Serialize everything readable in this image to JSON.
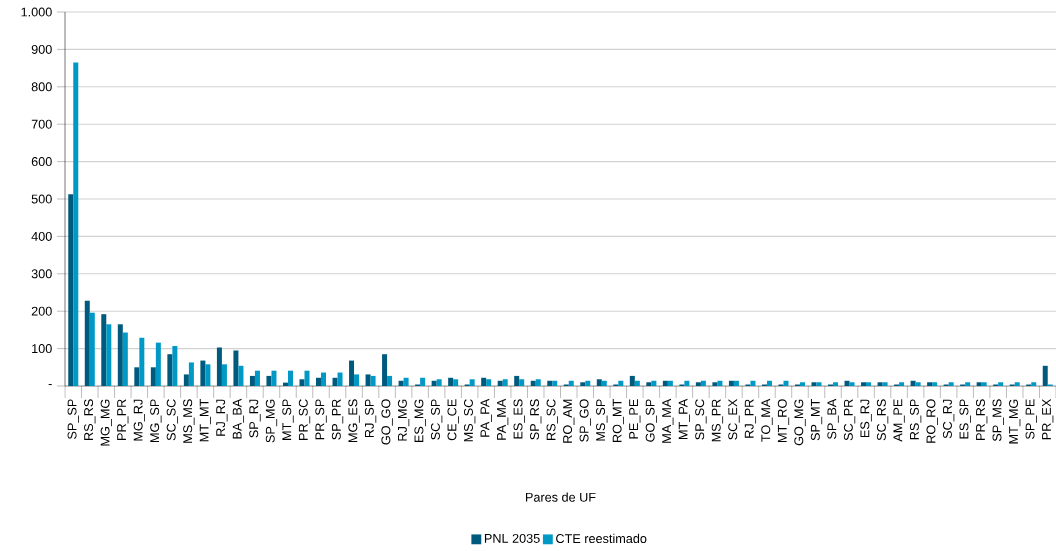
{
  "chart_data": {
    "type": "bar",
    "xlabel": "Pares de UF",
    "categories": [
      "SP_SP",
      "RS_RS",
      "MG_MG",
      "PR_PR",
      "MG_RJ",
      "MG_SP",
      "SC_SC",
      "MS_MS",
      "MT_MT",
      "RJ_RJ",
      "BA_BA",
      "SP_RJ",
      "SP_MG",
      "MT_SP",
      "PR_SC",
      "PR_SP",
      "SP_PR",
      "MG_ES",
      "RJ_SP",
      "GO_GO",
      "RJ_MG",
      "ES_MG",
      "SC_SP",
      "CE_CE",
      "MS_SC",
      "PA_PA",
      "PA_MA",
      "ES_ES",
      "SP_RS",
      "RS_SC",
      "RO_AM",
      "SP_GO",
      "MS_SP",
      "RO_MT",
      "PE_PE",
      "GO_SP",
      "MA_MA",
      "MT_PA",
      "SP_SC",
      "MS_PR",
      "SC_EX",
      "RJ_PR",
      "TO_MA",
      "MT_RO",
      "GO_MG",
      "SP_MT",
      "SP_BA",
      "SC_PR",
      "ES_RJ",
      "SC_RS",
      "AM_PE",
      "RS_SP",
      "RO_RO",
      "SC_RJ",
      "ES_SP",
      "PR_RS",
      "SP_MS",
      "MT_MG",
      "SP_PE",
      "PR_EX"
    ],
    "series": [
      {
        "name": "PNL 2035",
        "color": "#005a7e",
        "values": [
          513,
          228,
          192,
          165,
          50,
          50,
          85,
          31,
          68,
          103,
          95,
          27,
          27,
          9,
          18,
          22,
          22,
          68,
          31,
          85,
          14,
          4,
          14,
          22,
          4,
          22,
          14,
          27,
          14,
          14,
          4,
          10,
          18,
          4,
          27,
          10,
          14,
          4,
          10,
          10,
          14,
          4,
          4,
          4,
          4,
          10,
          4,
          14,
          10,
          10,
          4,
          14,
          10,
          4,
          4,
          10,
          4,
          4,
          4,
          54
        ]
      },
      {
        "name": "CTE reestimado",
        "color": "#0099c6",
        "values": [
          865,
          196,
          165,
          143,
          129,
          116,
          107,
          63,
          58,
          58,
          54,
          41,
          41,
          41,
          41,
          36,
          36,
          31,
          27,
          27,
          22,
          22,
          18,
          18,
          18,
          18,
          18,
          18,
          18,
          14,
          14,
          14,
          14,
          14,
          14,
          14,
          14,
          14,
          14,
          14,
          14,
          14,
          14,
          14,
          10,
          10,
          10,
          10,
          10,
          10,
          10,
          10,
          10,
          10,
          10,
          10,
          10,
          10,
          10,
          4
        ]
      }
    ],
    "ylim": [
      0,
      1000
    ],
    "yticks": [
      {
        "value": 0,
        "label": "-"
      },
      100,
      200,
      300,
      400,
      500,
      600,
      700,
      800,
      900,
      {
        "value": 1000,
        "label": "1.000"
      }
    ],
    "grid": "y",
    "legend": "bottom"
  }
}
